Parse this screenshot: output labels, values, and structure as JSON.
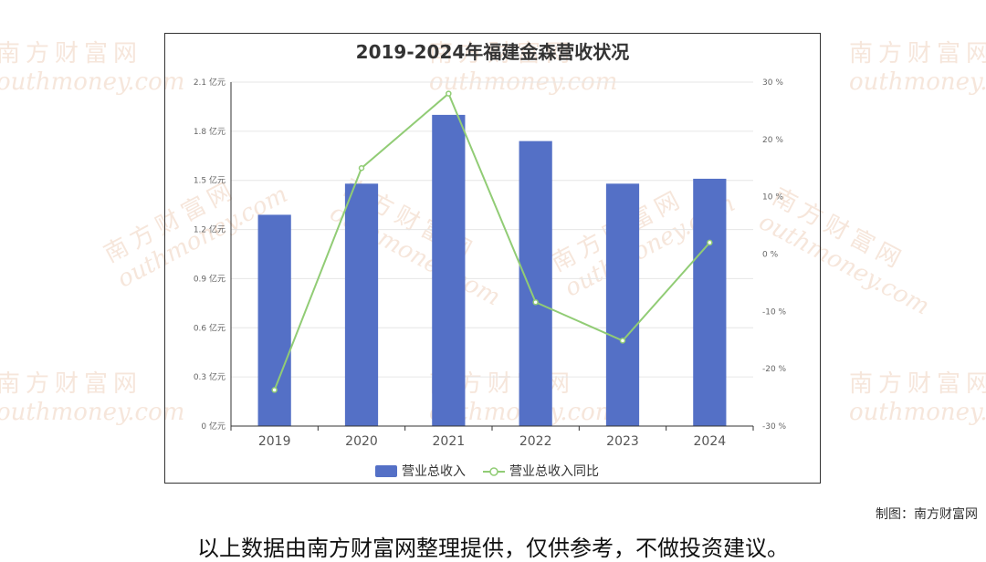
{
  "chart_data": {
    "type": "bar",
    "title": "2019-2024年福建金森营收状况",
    "categories": [
      "2019",
      "2020",
      "2021",
      "2022",
      "2023",
      "2024"
    ],
    "series": [
      {
        "name": "营业总收入",
        "type": "bar",
        "axis": "left",
        "color": "#5470c6",
        "values": [
          1.29,
          1.48,
          1.9,
          1.74,
          1.48,
          1.51
        ]
      },
      {
        "name": "营业总收入同比",
        "type": "line",
        "axis": "right",
        "color": "#91cc75",
        "values": [
          -23.7,
          15.0,
          28.0,
          -8.4,
          -15.1,
          2.0
        ]
      }
    ],
    "left_axis": {
      "ticks": [
        "0 亿元",
        "0.3 亿元",
        "0.6 亿元",
        "0.9 亿元",
        "1.2 亿元",
        "1.5 亿元",
        "1.8 亿元",
        "2.1 亿元"
      ],
      "ylim": [
        0,
        2.1
      ]
    },
    "right_axis": {
      "ticks": [
        "-30 %",
        "-20 %",
        "-10 %",
        "0 %",
        "10 %",
        "20 %",
        "30 %"
      ],
      "ylim": [
        -30,
        30
      ]
    },
    "legend": {
      "position": "bottom",
      "items": [
        "营业总收入",
        "营业总收入同比"
      ]
    },
    "grid": true
  },
  "source_label": "制图：南方财富网",
  "disclaimer": "以上数据由南方财富网整理提供，仅供参考，不做投资建议。",
  "watermark": {
    "cn": "南方财富网",
    "en": "outhmoney.com",
    "color": "#ebc8af"
  }
}
